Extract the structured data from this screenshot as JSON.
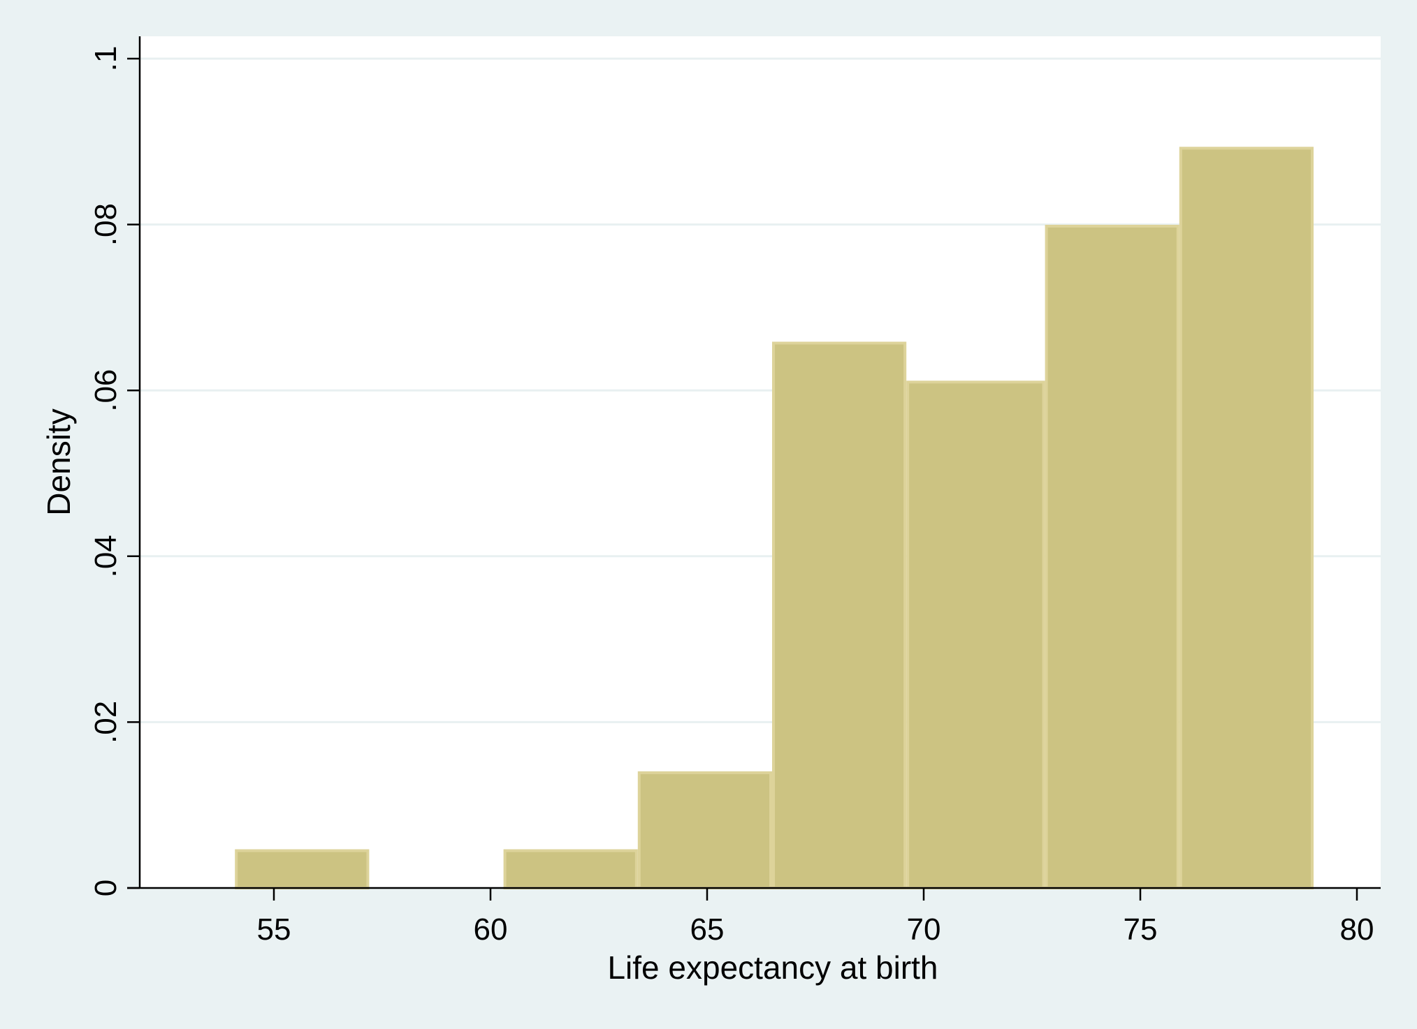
{
  "chart_data": {
    "type": "bar",
    "subtype": "histogram",
    "xlabel": "Life expectancy at birth",
    "ylabel": "Density",
    "xlim": [
      52,
      81
    ],
    "ylim": [
      0,
      0.1
    ],
    "x_ticks": [
      {
        "value": 55,
        "label": "55"
      },
      {
        "value": 60,
        "label": "60"
      },
      {
        "value": 65,
        "label": "65"
      },
      {
        "value": 70,
        "label": "70"
      },
      {
        "value": 75,
        "label": "75"
      },
      {
        "value": 80,
        "label": "80"
      }
    ],
    "y_ticks": [
      {
        "value": 0,
        "label": "0"
      },
      {
        "value": 0.02,
        "label": ".02"
      },
      {
        "value": 0.04,
        "label": ".04"
      },
      {
        "value": 0.06,
        "label": ".06"
      },
      {
        "value": 0.08,
        "label": ".08"
      },
      {
        "value": 0.1,
        "label": ".1"
      }
    ],
    "bins": [
      {
        "start": 54.1,
        "end": 57.2,
        "density": 0.0045
      },
      {
        "start": 57.2,
        "end": 60.3,
        "density": 0
      },
      {
        "start": 60.3,
        "end": 63.4,
        "density": 0.0045
      },
      {
        "start": 63.4,
        "end": 66.5,
        "density": 0.0139
      },
      {
        "start": 66.5,
        "end": 69.6,
        "density": 0.0657
      },
      {
        "start": 69.6,
        "end": 72.8,
        "density": 0.061
      },
      {
        "start": 72.8,
        "end": 75.9,
        "density": 0.0798
      },
      {
        "start": 75.9,
        "end": 79.0,
        "density": 0.0892
      }
    ],
    "grid": true,
    "colors": {
      "bar_fill": "#ccc382",
      "bar_edge": "#ddd39a",
      "grid": "#e8f0f1",
      "plot_background": "#ffffff",
      "outer_background": "#eaf2f3"
    }
  }
}
